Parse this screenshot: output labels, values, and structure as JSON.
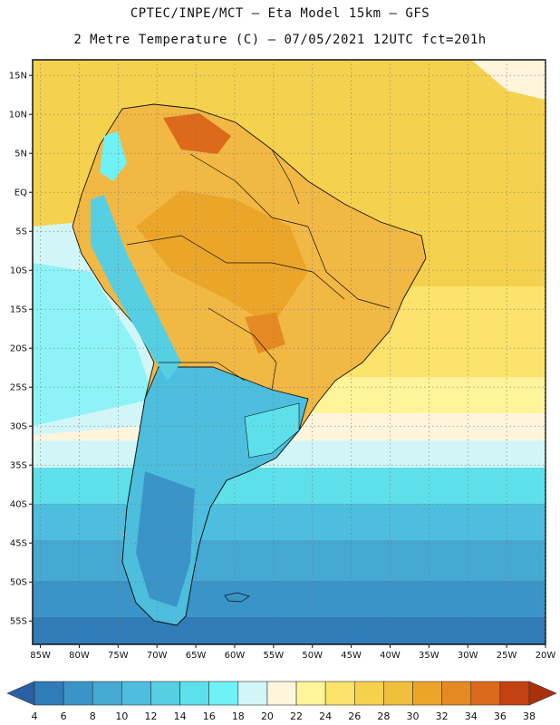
{
  "header": {
    "line1": "CPTEC/INPE/MCT –  Eta Model 15km – GFS",
    "line2": "2 Metre Temperature (C) – 07/05/2021 12UTC fct=201h"
  },
  "map": {
    "lat_labels": [
      "15N",
      "10N",
      "5N",
      "EQ",
      "5S",
      "10S",
      "15S",
      "20S",
      "25S",
      "30S",
      "35S",
      "40S",
      "45S",
      "50S",
      "55S"
    ],
    "lat_values": [
      15,
      10,
      5,
      0,
      -5,
      -10,
      -15,
      -20,
      -25,
      -30,
      -35,
      -40,
      -45,
      -50,
      -55
    ],
    "lon_labels": [
      "85W",
      "80W",
      "75W",
      "70W",
      "65W",
      "60W",
      "55W",
      "50W",
      "45W",
      "40W",
      "35W",
      "30W",
      "25W",
      "20W"
    ],
    "lon_values": [
      -85,
      -80,
      -75,
      -70,
      -65,
      -60,
      -55,
      -50,
      -45,
      -40,
      -35,
      -30,
      -25,
      -20
    ],
    "lat_range": [
      -58,
      17
    ],
    "lon_range": [
      -86,
      -20
    ]
  },
  "colorbar": {
    "ticks": [
      "4",
      "6",
      "8",
      "10",
      "12",
      "14",
      "16",
      "18",
      "20",
      "22",
      "24",
      "26",
      "28",
      "30",
      "32",
      "34",
      "36",
      "38"
    ],
    "colors": [
      "#2a5fa3",
      "#2f7cb8",
      "#3a94c8",
      "#45a9d4",
      "#4dbedd",
      "#56cfe3",
      "#5ee0ea",
      "#6ff2f6",
      "#d2f6f8",
      "#fff5dc",
      "#fff49a",
      "#fbe36c",
      "#f6d14e",
      "#f0bf3c",
      "#eba62a",
      "#e58a22",
      "#dc6a1a",
      "#c44212",
      "#a8300d"
    ]
  }
}
